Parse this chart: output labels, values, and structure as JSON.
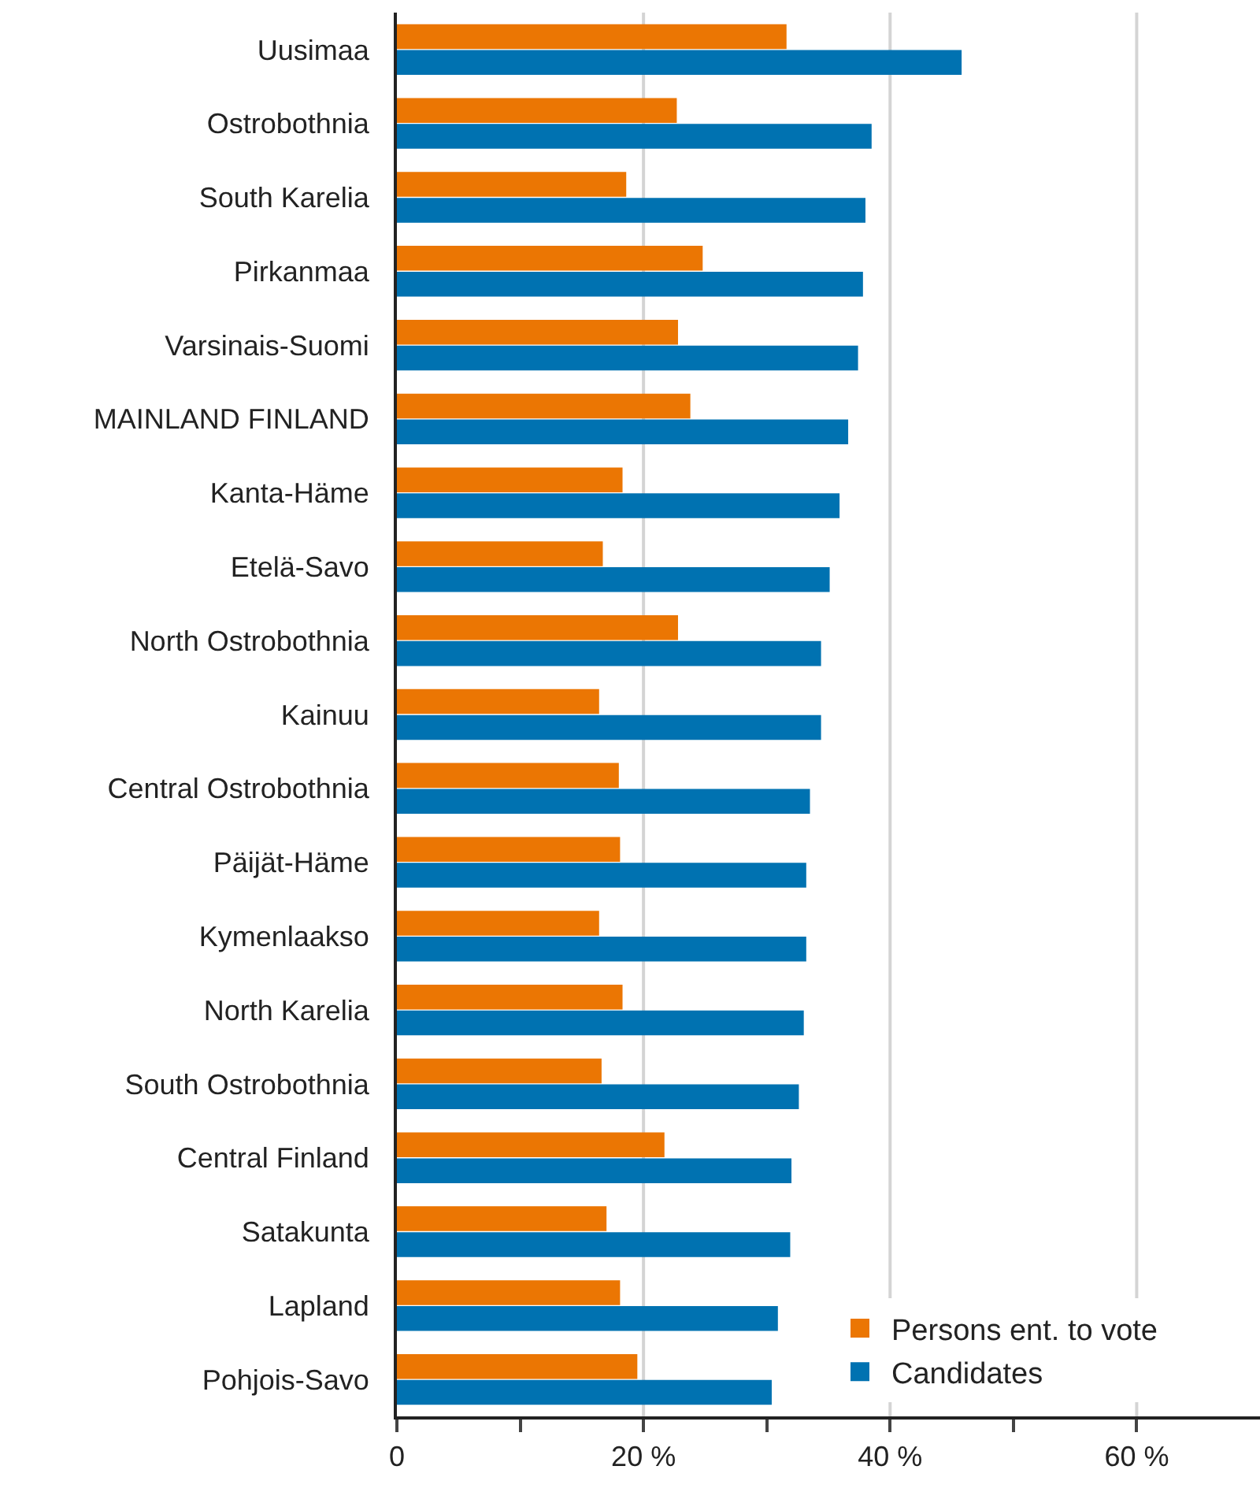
{
  "chart_data": {
    "type": "bar",
    "orientation": "horizontal",
    "categories": [
      "Uusimaa",
      "Ostrobothnia",
      "South Karelia",
      "Pirkanmaa",
      "Varsinais-Suomi",
      "MAINLAND FINLAND",
      "Kanta-Häme",
      "Etelä-Savo",
      "North Ostrobothnia",
      "Kainuu",
      "Central Ostrobothnia",
      "Päijät-Häme",
      "Kymenlaakso",
      "North Karelia",
      "South Ostrobothnia",
      "Central Finland",
      "Satakunta",
      "Lapland",
      "Pohjois-Savo"
    ],
    "series": [
      {
        "name": "Persons ent. to vote",
        "color": "#eb7603",
        "values": [
          31.6,
          22.7,
          18.6,
          24.8,
          22.8,
          23.8,
          18.3,
          16.7,
          22.8,
          16.4,
          18.0,
          18.1,
          16.4,
          18.3,
          16.6,
          21.7,
          17.0,
          18.1,
          19.5
        ]
      },
      {
        "name": "Candidates",
        "color": "#0072b1",
        "values": [
          45.8,
          38.5,
          38.0,
          37.8,
          37.4,
          36.6,
          35.9,
          35.1,
          34.4,
          34.4,
          33.5,
          33.2,
          33.2,
          33.0,
          32.6,
          32.0,
          31.9,
          30.9,
          30.4
        ]
      }
    ],
    "xlim": [
      0,
      70
    ],
    "xticks": [
      0,
      {
        "value": 10,
        "label": null
      },
      {
        "value": 20,
        "label": "20 %"
      },
      {
        "value": 30,
        "label": null
      },
      {
        "value": 40,
        "label": "40 %"
      },
      {
        "value": 50,
        "label": null
      },
      {
        "value": 60,
        "label": "60 %"
      }
    ],
    "grid": "x",
    "legend": "bottom right"
  }
}
